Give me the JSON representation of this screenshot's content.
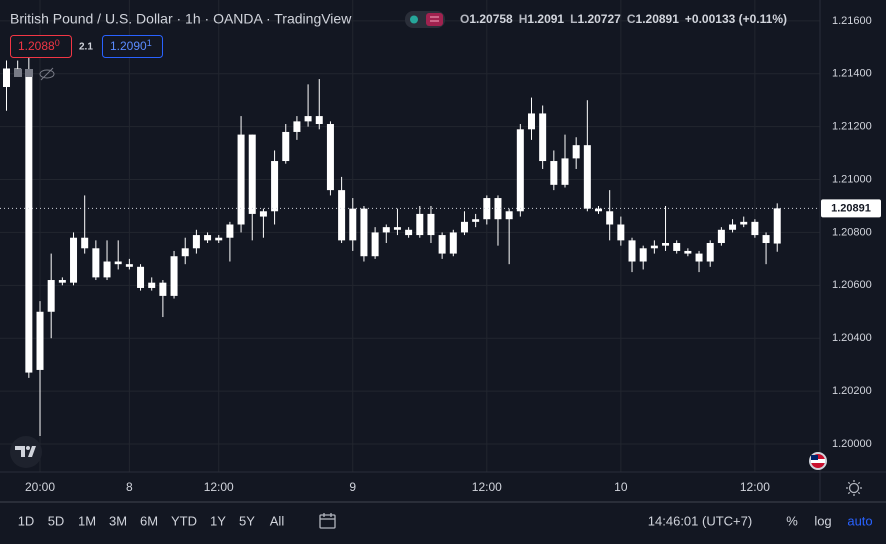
{
  "header": {
    "title": "British Pound / U.S. Dollar · 1h · OANDA · TradingView",
    "ohlc": [
      {
        "label": "O",
        "value": 1.20758
      },
      {
        "label": "H",
        "value": 1.2091
      },
      {
        "label": "L",
        "value": 1.20727
      },
      {
        "label": "C",
        "value": 1.20891
      }
    ],
    "change": "+0.00133 (+0.11%)",
    "sell": {
      "main": "1.2088",
      "pip": "0"
    },
    "spread": "2.1",
    "buy": {
      "main": "1.2090",
      "pip": "1"
    }
  },
  "chart_data": {
    "type": "candlestick",
    "color": "#ffffff",
    "grid": true,
    "categories": [
      null,
      null,
      null,
      "20:00",
      null,
      null,
      null,
      null,
      null,
      null,
      null,
      "8",
      null,
      null,
      null,
      null,
      null,
      null,
      null,
      "12:00",
      null,
      null,
      null,
      null,
      null,
      null,
      null,
      null,
      null,
      null,
      null,
      "9",
      null,
      null,
      null,
      null,
      null,
      null,
      null,
      null,
      null,
      null,
      null,
      "12:00",
      null,
      null,
      null,
      null,
      null,
      null,
      null,
      null,
      null,
      null,
      null,
      "10",
      null,
      null,
      null,
      null,
      null,
      null,
      null,
      null,
      null,
      null,
      null,
      "12:00",
      null,
      null
    ],
    "open": [
      1.2135,
      1.2142,
      1.214,
      1.2028,
      1.205,
      1.2062,
      1.2061,
      1.2078,
      1.2074,
      1.2063,
      1.2069,
      1.2068,
      1.2067,
      1.2059,
      1.2061,
      1.2056,
      1.2071,
      1.2074,
      1.2079,
      1.2077,
      1.2078,
      1.2083,
      1.2117,
      1.2086,
      1.2088,
      1.2107,
      1.2118,
      1.2122,
      1.2124,
      1.2121,
      1.2096,
      1.2077,
      1.2089,
      1.2071,
      1.208,
      1.2082,
      1.2081,
      1.2079,
      1.2087,
      1.2079,
      1.2072,
      1.208,
      1.2084,
      1.2085,
      1.2093,
      1.2085,
      1.2088,
      1.2119,
      1.2125,
      1.2107,
      1.2098,
      1.2108,
      1.2113,
      1.2089,
      1.2088,
      1.2083,
      1.2077,
      1.2069,
      1.2074,
      1.2075,
      1.2076,
      1.2073,
      1.2072,
      1.2069,
      1.2076,
      1.2081,
      1.2083,
      1.2084,
      1.2079,
      1.20758
    ],
    "high": [
      1.2145,
      1.2145,
      1.2146,
      1.2054,
      1.2072,
      1.2063,
      1.208,
      1.2094,
      1.2077,
      1.2077,
      1.2077,
      1.207,
      1.2068,
      1.2063,
      1.2062,
      1.2073,
      1.2078,
      1.2081,
      1.208,
      1.2079,
      1.2084,
      1.2124,
      1.2117,
      1.2089,
      1.2111,
      1.2121,
      1.2124,
      1.2136,
      1.2138,
      1.2122,
      1.2101,
      1.2093,
      1.209,
      1.2082,
      1.2083,
      1.2089,
      1.2082,
      1.209,
      1.209,
      1.208,
      1.2081,
      1.2088,
      1.2087,
      1.2094,
      1.2094,
      1.2089,
      1.2121,
      1.2131,
      1.2128,
      1.2111,
      1.2117,
      1.2116,
      1.213,
      1.209,
      1.2096,
      1.2086,
      1.2078,
      1.2075,
      1.2077,
      1.209,
      1.2077,
      1.2074,
      1.2073,
      1.2077,
      1.2082,
      1.2085,
      1.2086,
      1.2085,
      1.208,
      1.2091
    ],
    "low": [
      1.2126,
      1.214,
      1.2025,
      1.2003,
      1.204,
      1.206,
      1.206,
      1.2072,
      1.2062,
      1.2062,
      1.2066,
      1.2066,
      1.2058,
      1.2058,
      1.2048,
      1.2055,
      1.2068,
      1.2072,
      1.2076,
      1.2076,
      1.2069,
      1.208,
      1.2077,
      1.2078,
      1.2083,
      1.2106,
      1.2115,
      1.212,
      1.2119,
      1.2094,
      1.2076,
      1.2073,
      1.2069,
      1.207,
      1.2076,
      1.2079,
      1.2078,
      1.2078,
      1.2076,
      1.207,
      1.2071,
      1.2079,
      1.2082,
      1.2083,
      1.2075,
      1.2068,
      1.2086,
      1.2115,
      1.2104,
      1.2096,
      1.2097,
      1.2104,
      1.2088,
      1.2087,
      1.2077,
      1.2075,
      1.2065,
      1.2066,
      1.2072,
      1.2073,
      1.2072,
      1.2071,
      1.2065,
      1.2067,
      1.2075,
      1.208,
      1.2082,
      1.2078,
      1.2068,
      1.20727
    ],
    "close": [
      1.2142,
      1.214,
      1.2027,
      1.205,
      1.2062,
      1.2061,
      1.2078,
      1.2074,
      1.2063,
      1.2069,
      1.2068,
      1.2067,
      1.2059,
      1.2061,
      1.2056,
      1.2071,
      1.2074,
      1.2079,
      1.2077,
      1.2078,
      1.2083,
      1.2117,
      1.2087,
      1.2088,
      1.2107,
      1.2118,
      1.2122,
      1.2124,
      1.2121,
      1.2096,
      1.2077,
      1.2089,
      1.2071,
      1.208,
      1.2082,
      1.2081,
      1.2079,
      1.2087,
      1.2079,
      1.2072,
      1.208,
      1.2084,
      1.2085,
      1.2093,
      1.2085,
      1.2088,
      1.2119,
      1.2125,
      1.2107,
      1.2098,
      1.2108,
      1.2113,
      1.2089,
      1.2088,
      1.2083,
      1.2077,
      1.2069,
      1.2074,
      1.2075,
      1.2076,
      1.2073,
      1.2072,
      1.2069,
      1.2076,
      1.2081,
      1.2083,
      1.2084,
      1.2079,
      1.2076,
      1.20891
    ],
    "ylim": [
      1.19894,
      1.21679
    ],
    "yticks": [
      {
        "value": 1.2,
        "label": "1.20000"
      },
      {
        "value": 1.202,
        "label": "1.20200"
      },
      {
        "value": 1.204,
        "label": "1.20400"
      },
      {
        "value": 1.206,
        "label": "1.20600"
      },
      {
        "value": 1.208,
        "label": "1.20800"
      },
      {
        "value": 1.21,
        "label": "1.21000"
      },
      {
        "value": 1.212,
        "label": "1.21200"
      },
      {
        "value": 1.214,
        "label": "1.21400"
      },
      {
        "value": 1.216,
        "label": "1.21600"
      }
    ],
    "last_price": {
      "value": 1.20891,
      "label": "1.20891"
    }
  },
  "toolbar": {
    "ranges": [
      "1D",
      "5D",
      "1M",
      "3M",
      "6M",
      "YTD",
      "1Y",
      "5Y",
      "All"
    ],
    "clock": "14:46:01 (UTC+7)",
    "percent": "%",
    "log": "log",
    "auto": "auto"
  }
}
